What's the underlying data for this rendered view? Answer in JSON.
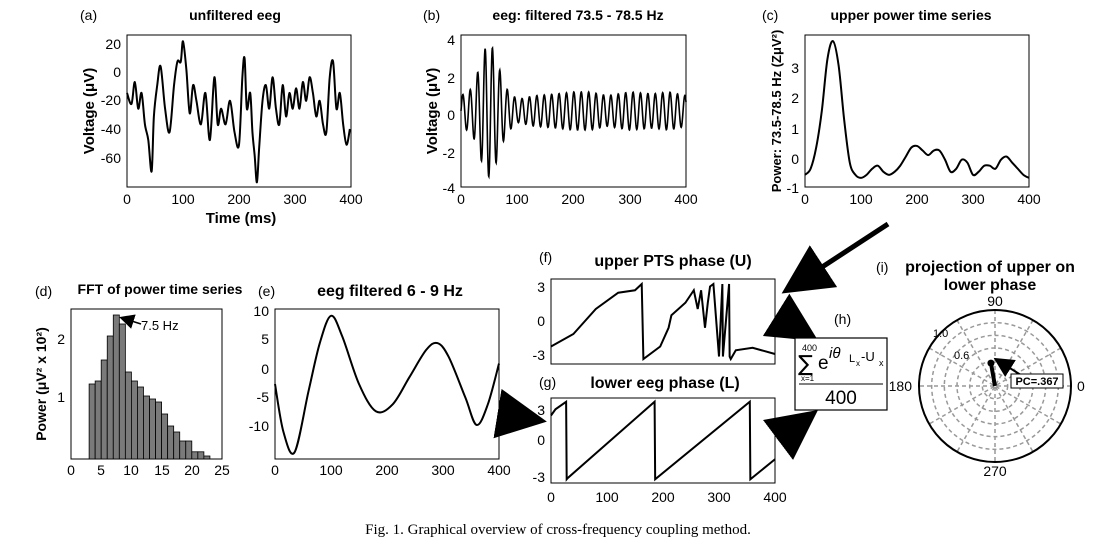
{
  "figure": {
    "caption": "Fig. 1.  Graphical overview of cross-frequency coupling method."
  },
  "panels": {
    "a": {
      "letter": "(a)",
      "title": "unfiltered eeg",
      "xlabel": "Time (ms)",
      "ylabel": "Voltage (μV)",
      "xticks": [
        "0",
        "100",
        "200",
        "300",
        "400"
      ],
      "yticks": [
        "20",
        "0",
        "-20",
        "-40",
        "-60"
      ]
    },
    "b": {
      "letter": "(b)",
      "title": "eeg: filtered 73.5 - 78.5 Hz",
      "ylabel": "Voltage (μV)",
      "xticks": [
        "0",
        "100",
        "200",
        "300",
        "400"
      ],
      "yticks": [
        "4",
        "2",
        "0",
        "-2",
        "-4"
      ]
    },
    "c": {
      "letter": "(c)",
      "title": "upper power time series",
      "ylabel": "Power: 73.5-78.5 Hz (ZμV²)",
      "xticks": [
        "0",
        "100",
        "200",
        "300",
        "400"
      ],
      "yticks": [
        "3",
        "2",
        "1",
        "0",
        "-1"
      ]
    },
    "d": {
      "letter": "(d)",
      "title": "FFT of power time series",
      "ylabel": "Power (μV² x 10²)",
      "xticks": [
        "0",
        "5",
        "10",
        "15",
        "20",
        "25"
      ],
      "yticks": [
        "2",
        "1"
      ],
      "annotation": "7.5 Hz"
    },
    "e": {
      "letter": "(e)",
      "title": "eeg filtered 6 - 9 Hz",
      "xticks": [
        "0",
        "100",
        "200",
        "300",
        "400"
      ],
      "yticks": [
        "10",
        "5",
        "0",
        "-5",
        "-10"
      ]
    },
    "f": {
      "letter": "(f)",
      "title": "upper PTS phase (U)",
      "yticks": [
        "3",
        "0",
        "-3"
      ]
    },
    "g": {
      "letter": "(g)",
      "title": "lower eeg phase (L)",
      "xticks": [
        "0",
        "100",
        "200",
        "300",
        "400"
      ],
      "yticks": [
        "3",
        "0",
        "-3"
      ]
    },
    "h": {
      "letter": "(h)",
      "sum_top": "400",
      "sum_bottom": "x=1",
      "sum_symbol": "∑",
      "base": "e",
      "exponent": "iθ",
      "exp_sub": "L",
      "exp_sub2": "x",
      "exp_sep": "-U",
      "exp_sub3": "x",
      "denominator": "400"
    },
    "i": {
      "letter": "(i)",
      "title_line1": "projection of upper on",
      "title_line2": "lower phase",
      "angle_labels": [
        "90",
        "180",
        "0",
        "270"
      ],
      "radius_labels": [
        "1.0",
        "0.6"
      ],
      "annotation": "PC=.367"
    }
  },
  "chart_data": [
    {
      "id": "a",
      "type": "line",
      "title": "unfiltered eeg",
      "xlabel": "Time (ms)",
      "ylabel": "Voltage (μV)",
      "xlim": [
        0,
        400
      ],
      "ylim": [
        -75,
        22
      ],
      "series": [
        {
          "x": [
            0,
            8,
            14,
            20,
            26,
            32,
            38,
            44,
            48,
            54,
            60,
            68,
            76,
            84,
            90,
            96,
            100,
            106,
            112,
            118,
            124,
            132,
            140,
            148,
            156,
            162,
            168,
            176,
            184,
            192,
            200,
            206,
            210,
            214,
            220,
            224,
            228,
            232,
            236,
            242,
            248,
            254,
            260,
            266,
            272,
            278,
            284,
            290,
            296,
            302,
            308,
            314,
            320,
            326,
            332,
            338,
            344,
            350,
            356,
            362,
            368,
            374,
            380,
            386,
            392,
            398
          ],
          "y": [
            -15,
            -22,
            -8,
            -25,
            -15,
            -35,
            -45,
            -65,
            -30,
            -10,
            2,
            -25,
            -40,
            -10,
            5,
            5,
            18,
            0,
            -28,
            -10,
            -20,
            -35,
            -15,
            -45,
            -5,
            -35,
            -25,
            -35,
            -20,
            -40,
            -48,
            -5,
            7,
            -25,
            -15,
            -40,
            -55,
            -72,
            -50,
            -20,
            -10,
            -25,
            -5,
            -25,
            -35,
            -10,
            -30,
            -15,
            -25,
            -12,
            -25,
            -8,
            -20,
            -5,
            -15,
            -30,
            -20,
            -35,
            -40,
            -5,
            5,
            -25,
            -15,
            -35,
            -48,
            -38
          ]
        }
      ]
    },
    {
      "id": "b",
      "type": "line",
      "title": "eeg: filtered 73.5 - 78.5 Hz",
      "ylabel": "Voltage (μV)",
      "xlim": [
        0,
        400
      ],
      "ylim": [
        -4,
        4
      ],
      "frequency_hz": 76,
      "envelope": {
        "x": [
          0,
          20,
          35,
          45,
          55,
          65,
          80,
          100,
          130,
          170,
          200,
          230,
          260,
          300,
          340,
          370,
          400
        ],
        "y": [
          0.8,
          1.2,
          2.5,
          3.5,
          3.4,
          2.5,
          1.2,
          0.6,
          0.8,
          0.9,
          1.0,
          1.0,
          0.8,
          1.0,
          0.9,
          1.0,
          0.8
        ]
      }
    },
    {
      "id": "c",
      "type": "line",
      "title": "upper power time series",
      "ylabel": "Power: 73.5-78.5 Hz (ZμV²)",
      "xlim": [
        0,
        400
      ],
      "ylim": [
        -1,
        4
      ],
      "series": [
        {
          "x": [
            0,
            10,
            20,
            30,
            40,
            50,
            60,
            70,
            80,
            90,
            100,
            110,
            120,
            130,
            140,
            150,
            160,
            170,
            180,
            190,
            200,
            210,
            220,
            230,
            240,
            250,
            260,
            270,
            280,
            290,
            300,
            310,
            320,
            330,
            340,
            350,
            360,
            370,
            380,
            390,
            400
          ],
          "y": [
            -0.6,
            -0.4,
            0.3,
            1.5,
            3.2,
            3.8,
            3.0,
            1.2,
            -0.2,
            -0.6,
            -0.7,
            -0.6,
            -0.4,
            -0.3,
            -0.5,
            -0.6,
            -0.5,
            -0.3,
            0.0,
            0.3,
            0.35,
            0.2,
            0.05,
            0.2,
            0.2,
            -0.1,
            -0.5,
            -0.4,
            -0.1,
            -0.2,
            -0.6,
            -0.5,
            -0.3,
            -0.3,
            -0.4,
            -0.1,
            0.0,
            -0.2,
            -0.4,
            -0.6,
            -0.7
          ]
        }
      ]
    },
    {
      "id": "d",
      "type": "bar",
      "title": "FFT of power time series",
      "ylabel": "Power (μV² x 10²)",
      "xlim": [
        0,
        25
      ],
      "ylim": [
        0,
        2.5
      ],
      "x": [
        3.5,
        4.5,
        5.5,
        6.5,
        7.5,
        8.5,
        9.5,
        10.5,
        11.5,
        12.5,
        13.5,
        14.5,
        15.5,
        16.5,
        17.5,
        18.5,
        19.5,
        20.5,
        21.5,
        22.5
      ],
      "values": [
        1.25,
        1.3,
        1.65,
        2.05,
        2.4,
        2.25,
        1.45,
        1.3,
        1.2,
        1.05,
        1.0,
        0.95,
        0.75,
        0.55,
        0.45,
        0.3,
        0.3,
        0.12,
        0.12,
        0.05
      ],
      "annotation": "7.5 Hz"
    },
    {
      "id": "e",
      "type": "line",
      "title": "eeg filtered 6 - 9 Hz",
      "xlim": [
        0,
        400
      ],
      "ylim": [
        -12,
        10
      ],
      "series": [
        {
          "x": [
            0,
            15,
            35,
            60,
            80,
            100,
            120,
            150,
            180,
            210,
            240,
            270,
            290,
            310,
            340,
            360,
            380,
            400
          ],
          "y": [
            -1,
            -8,
            -11,
            -2,
            5,
            9,
            6,
            -1,
            -5,
            -4,
            0,
            4,
            5,
            3,
            -3,
            -7,
            -4,
            2
          ]
        }
      ]
    },
    {
      "id": "f",
      "type": "line",
      "title": "upper PTS phase (U)",
      "xlim": [
        0,
        400
      ],
      "ylim": [
        -3.4,
        3.4
      ],
      "series": [
        {
          "x": [
            0,
            40,
            80,
            120,
            150,
            162,
            165,
            195,
            210,
            215,
            240,
            255,
            262,
            268,
            275,
            280,
            284,
            290,
            300,
            306,
            307,
            318,
            319,
            321,
            330,
            360,
            400
          ],
          "y": [
            -2.0,
            -1.0,
            1.0,
            2.3,
            2.5,
            3.0,
            -3.0,
            -2.0,
            -0.5,
            0.5,
            1.5,
            2.5,
            1.0,
            2.5,
            -0.5,
            1.5,
            2.8,
            3.0,
            -2.8,
            3.0,
            -2.8,
            3.0,
            -2.8,
            -3.0,
            -2.3,
            -2.1,
            -2.6
          ]
        }
      ]
    },
    {
      "id": "g",
      "type": "line",
      "title": "lower eeg phase (L)",
      "xlim": [
        0,
        400
      ],
      "ylim": [
        -3.4,
        3.4
      ],
      "series": [
        {
          "x": [
            0,
            8,
            27,
            28,
            30,
            185,
            186,
            355,
            356,
            400
          ],
          "y": [
            2.0,
            2.5,
            3.1,
            -3.1,
            -3.0,
            3.1,
            -3.1,
            3.1,
            -3.1,
            -1.5
          ]
        }
      ]
    },
    {
      "id": "i",
      "type": "polar",
      "title": "projection of upper on lower phase",
      "rlim": [
        0,
        1.2
      ],
      "angle_ticks": [
        0,
        90,
        180,
        270
      ],
      "radius_ticks": [
        0.6,
        1.0
      ],
      "vector": {
        "angle_deg": 100,
        "length": 0.367
      },
      "annotation": "PC=.367"
    }
  ]
}
